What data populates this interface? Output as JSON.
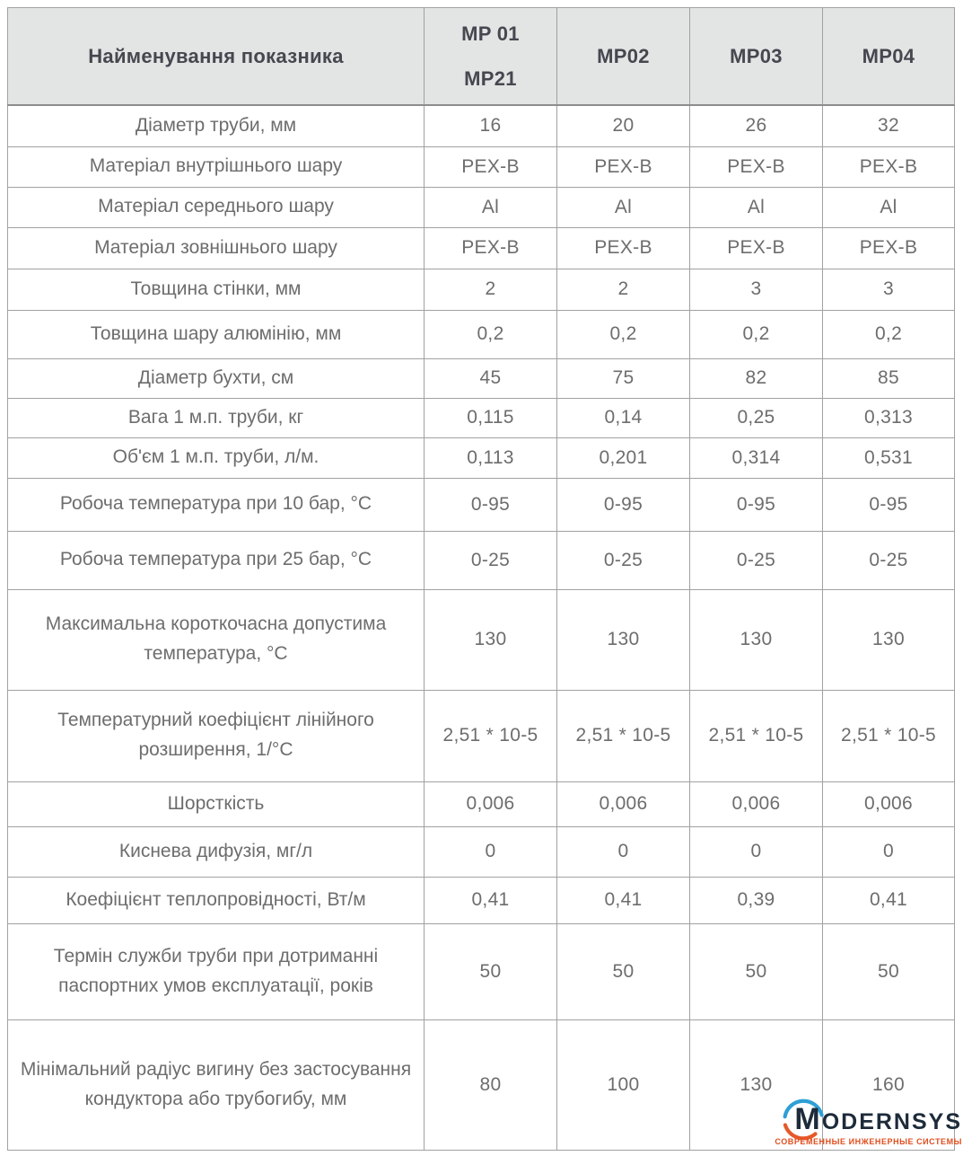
{
  "colors": {
    "border": "#a1a1a1",
    "header_bg": "#e3e4e4",
    "header_text": "#46474f",
    "body_text": "#6d6d6d"
  },
  "table": {
    "header": {
      "label_column": "Найменування показника",
      "columns": [
        "MP 01\nMP21",
        "MP02",
        "MP03",
        "MP04"
      ]
    },
    "rows": [
      {
        "label": "Діаметр труби, мм",
        "values": [
          "16",
          "20",
          "26",
          "32"
        ]
      },
      {
        "label": "Матеріал внутрішнього шару",
        "values": [
          "PEX-B",
          "PEX-B",
          "PEX-B",
          "PEX-B"
        ]
      },
      {
        "label": "Матеріал середнього шару",
        "values": [
          "Al",
          "Al",
          "Al",
          "Al"
        ]
      },
      {
        "label": "Матеріал зовнішнього шару",
        "values": [
          "PEX-B",
          "PEX-B",
          "PEX-B",
          "PEX-B"
        ]
      },
      {
        "label": "Товщина стінки, мм",
        "values": [
          "2",
          "2",
          "3",
          "3"
        ]
      },
      {
        "label": "Товщина шару алюмінію, мм",
        "values": [
          "0,2",
          "0,2",
          "0,2",
          "0,2"
        ]
      },
      {
        "label": "Діаметр бухти, см",
        "values": [
          "45",
          "75",
          "82",
          "85"
        ]
      },
      {
        "label": "Вага 1 м.п. труби, кг",
        "values": [
          "0,115",
          "0,14",
          "0,25",
          "0,313"
        ]
      },
      {
        "label": "Об'єм 1 м.п. труби, л/м.",
        "values": [
          "0,113",
          "0,201",
          "0,314",
          "0,531"
        ]
      },
      {
        "label": "Робоча температура при 10 бар, °С",
        "values": [
          "0-95",
          "0-95",
          "0-95",
          "0-95"
        ]
      },
      {
        "label": "Робоча температура при 25 бар, °С",
        "values": [
          "0-25",
          "0-25",
          "0-25",
          "0-25"
        ]
      },
      {
        "label": "Максимальна короткочасна допустима температура, °С",
        "values": [
          "130",
          "130",
          "130",
          "130"
        ]
      },
      {
        "label": "Температурний коефіцієнт лінійного розширення, 1/°С",
        "values": [
          "2,51 * 10-5",
          "2,51 * 10-5",
          "2,51 * 10-5",
          "2,51 * 10-5"
        ]
      },
      {
        "label": "Шорсткість",
        "values": [
          "0,006",
          "0,006",
          "0,006",
          "0,006"
        ]
      },
      {
        "label": "Киснева дифузія, мг/л",
        "values": [
          "0",
          "0",
          "0",
          "0"
        ]
      },
      {
        "label": "Коефіцієнт теплопровідності, Вт/м",
        "values": [
          "0,41",
          "0,41",
          "0,39",
          "0,41"
        ]
      },
      {
        "label": "Термін служби труби при дотриманні паспортних умов експлуатації, років",
        "values": [
          "50",
          "50",
          "50",
          "50"
        ]
      },
      {
        "label": "Мінімальний радіус вигину без застосування кондуктора або трубогибу, мм",
        "values": [
          "80",
          "100",
          "130",
          "160"
        ]
      }
    ]
  },
  "logo": {
    "wordmark": "MODERNSYS",
    "tagline": "СОВРЕМЕННЫЕ ИНЖЕНЕРНЫЕ СИСТЕМЫ",
    "colors": {
      "navy": "#1d2b3a",
      "blue": "#2e9fd6",
      "orange": "#e6592a",
      "tagline_red": "#e04e1e"
    }
  }
}
